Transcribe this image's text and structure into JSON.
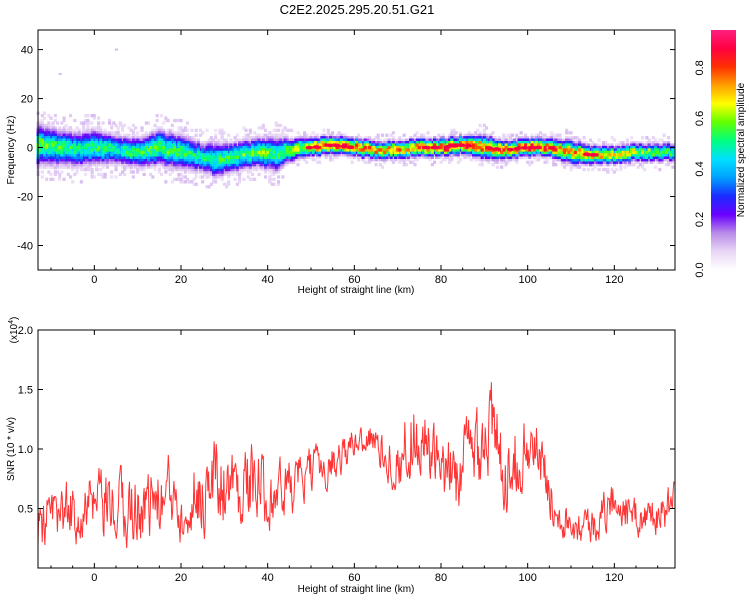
{
  "title": "C2E2.2025.295.20.51.G21",
  "chart_data": [
    {
      "type": "heatmap",
      "name": "spectrogram",
      "xlabel": "Height of straight line (km)",
      "ylabel": "Frequency (Hz)",
      "xlim": [
        -13,
        134
      ],
      "ylim": [
        -50,
        48
      ],
      "xticks": [
        0,
        20,
        40,
        60,
        80,
        100,
        120
      ],
      "yticks": [
        -40,
        -20,
        0,
        20,
        40
      ],
      "colorbar": {
        "label": "Normalized spectral amplitude",
        "range": [
          0,
          0.95
        ],
        "ticks": [
          0.0,
          0.2,
          0.4,
          0.6,
          0.8
        ],
        "tick_labels": [
          "0.0",
          "0.2",
          "0.4",
          "0.6",
          "0.8"
        ],
        "colors": [
          "#ffffff",
          "#e8d6f5",
          "#b98be8",
          "#6a00ff",
          "#1a2cff",
          "#00a0ff",
          "#00e0ff",
          "#00ff80",
          "#60ff00",
          "#ffff00",
          "#ffa000",
          "#ff3000",
          "#ff0040",
          "#ff1f80"
        ]
      },
      "ridge": {
        "x": [
          -13,
          -8,
          -3,
          0,
          5,
          10,
          15,
          20,
          25,
          28,
          32,
          38,
          42,
          45,
          50,
          55,
          60,
          65,
          70,
          75,
          80,
          85,
          90,
          95,
          100,
          105,
          110,
          115,
          120,
          125,
          130,
          134
        ],
        "frequency": [
          1,
          0,
          -1,
          0,
          -1,
          -2,
          0,
          -2,
          -4,
          -5,
          -4,
          -2,
          -3,
          -1,
          0,
          1,
          0,
          -1,
          -1,
          0,
          0,
          1,
          0,
          -1,
          0,
          0,
          -2,
          -3,
          -3,
          -2,
          -2,
          -2
        ],
        "amplitude": [
          0.6,
          0.55,
          0.5,
          0.55,
          0.5,
          0.55,
          0.6,
          0.55,
          0.5,
          0.55,
          0.55,
          0.6,
          0.55,
          0.6,
          0.8,
          0.85,
          0.8,
          0.75,
          0.75,
          0.8,
          0.85,
          0.85,
          0.8,
          0.8,
          0.85,
          0.85,
          0.75,
          0.8,
          0.7,
          0.65,
          0.6,
          0.55
        ],
        "width_hz": [
          7,
          6,
          6,
          6,
          5,
          5,
          6,
          6,
          5,
          6,
          5,
          5,
          6,
          4,
          3,
          3,
          3,
          3,
          3,
          3,
          3,
          3,
          4,
          3,
          3,
          3,
          4,
          3,
          3,
          3,
          3,
          3
        ]
      },
      "outliers": [
        {
          "x": -8,
          "frequency": 30
        },
        {
          "x": 5,
          "frequency": 40
        }
      ]
    },
    {
      "type": "line",
      "name": "snr",
      "xlabel": "Height of straight line (km)",
      "ylabel": "SNR (10 * v/v)",
      "multiplier_label": "(x10",
      "multiplier_exp": "4",
      "multiplier_close": ")",
      "color": "#ff3333",
      "xlim": [
        -13,
        134
      ],
      "ylim": [
        0,
        20000
      ],
      "xticks": [
        0,
        20,
        40,
        60,
        80,
        100,
        120
      ],
      "yticks": [
        5000,
        10000,
        15000,
        20000
      ],
      "ytick_labels": [
        "0.5",
        "1.0",
        "1.5",
        "2.0"
      ],
      "envelope_x": [
        -13,
        -5,
        0,
        5,
        10,
        15,
        20,
        25,
        28,
        32,
        36,
        40,
        45,
        50,
        55,
        60,
        63,
        66,
        70,
        73,
        76,
        80,
        84,
        88,
        91,
        94,
        98,
        102,
        106,
        110,
        115,
        120,
        125,
        130,
        134
      ],
      "envelope_mean": [
        3500,
        4800,
        5000,
        4800,
        5200,
        5800,
        6000,
        6300,
        7500,
        6800,
        7200,
        6200,
        6700,
        8000,
        9000,
        10500,
        11200,
        10000,
        8500,
        11500,
        10800,
        7500,
        8000,
        10500,
        12000,
        8500,
        9500,
        10200,
        5200,
        3800,
        3600,
        5800,
        4200,
        4500,
        5200
      ],
      "envelope_amp": [
        4500,
        4500,
        5000,
        5500,
        5500,
        5500,
        6000,
        6000,
        7000,
        5800,
        6000,
        5000,
        4500,
        3500,
        3000,
        2800,
        2500,
        3000,
        4000,
        6500,
        5500,
        5000,
        6000,
        7000,
        8000,
        6500,
        5500,
        4500,
        3500,
        2800,
        2800,
        3500,
        2800,
        3000,
        3500
      ]
    }
  ]
}
